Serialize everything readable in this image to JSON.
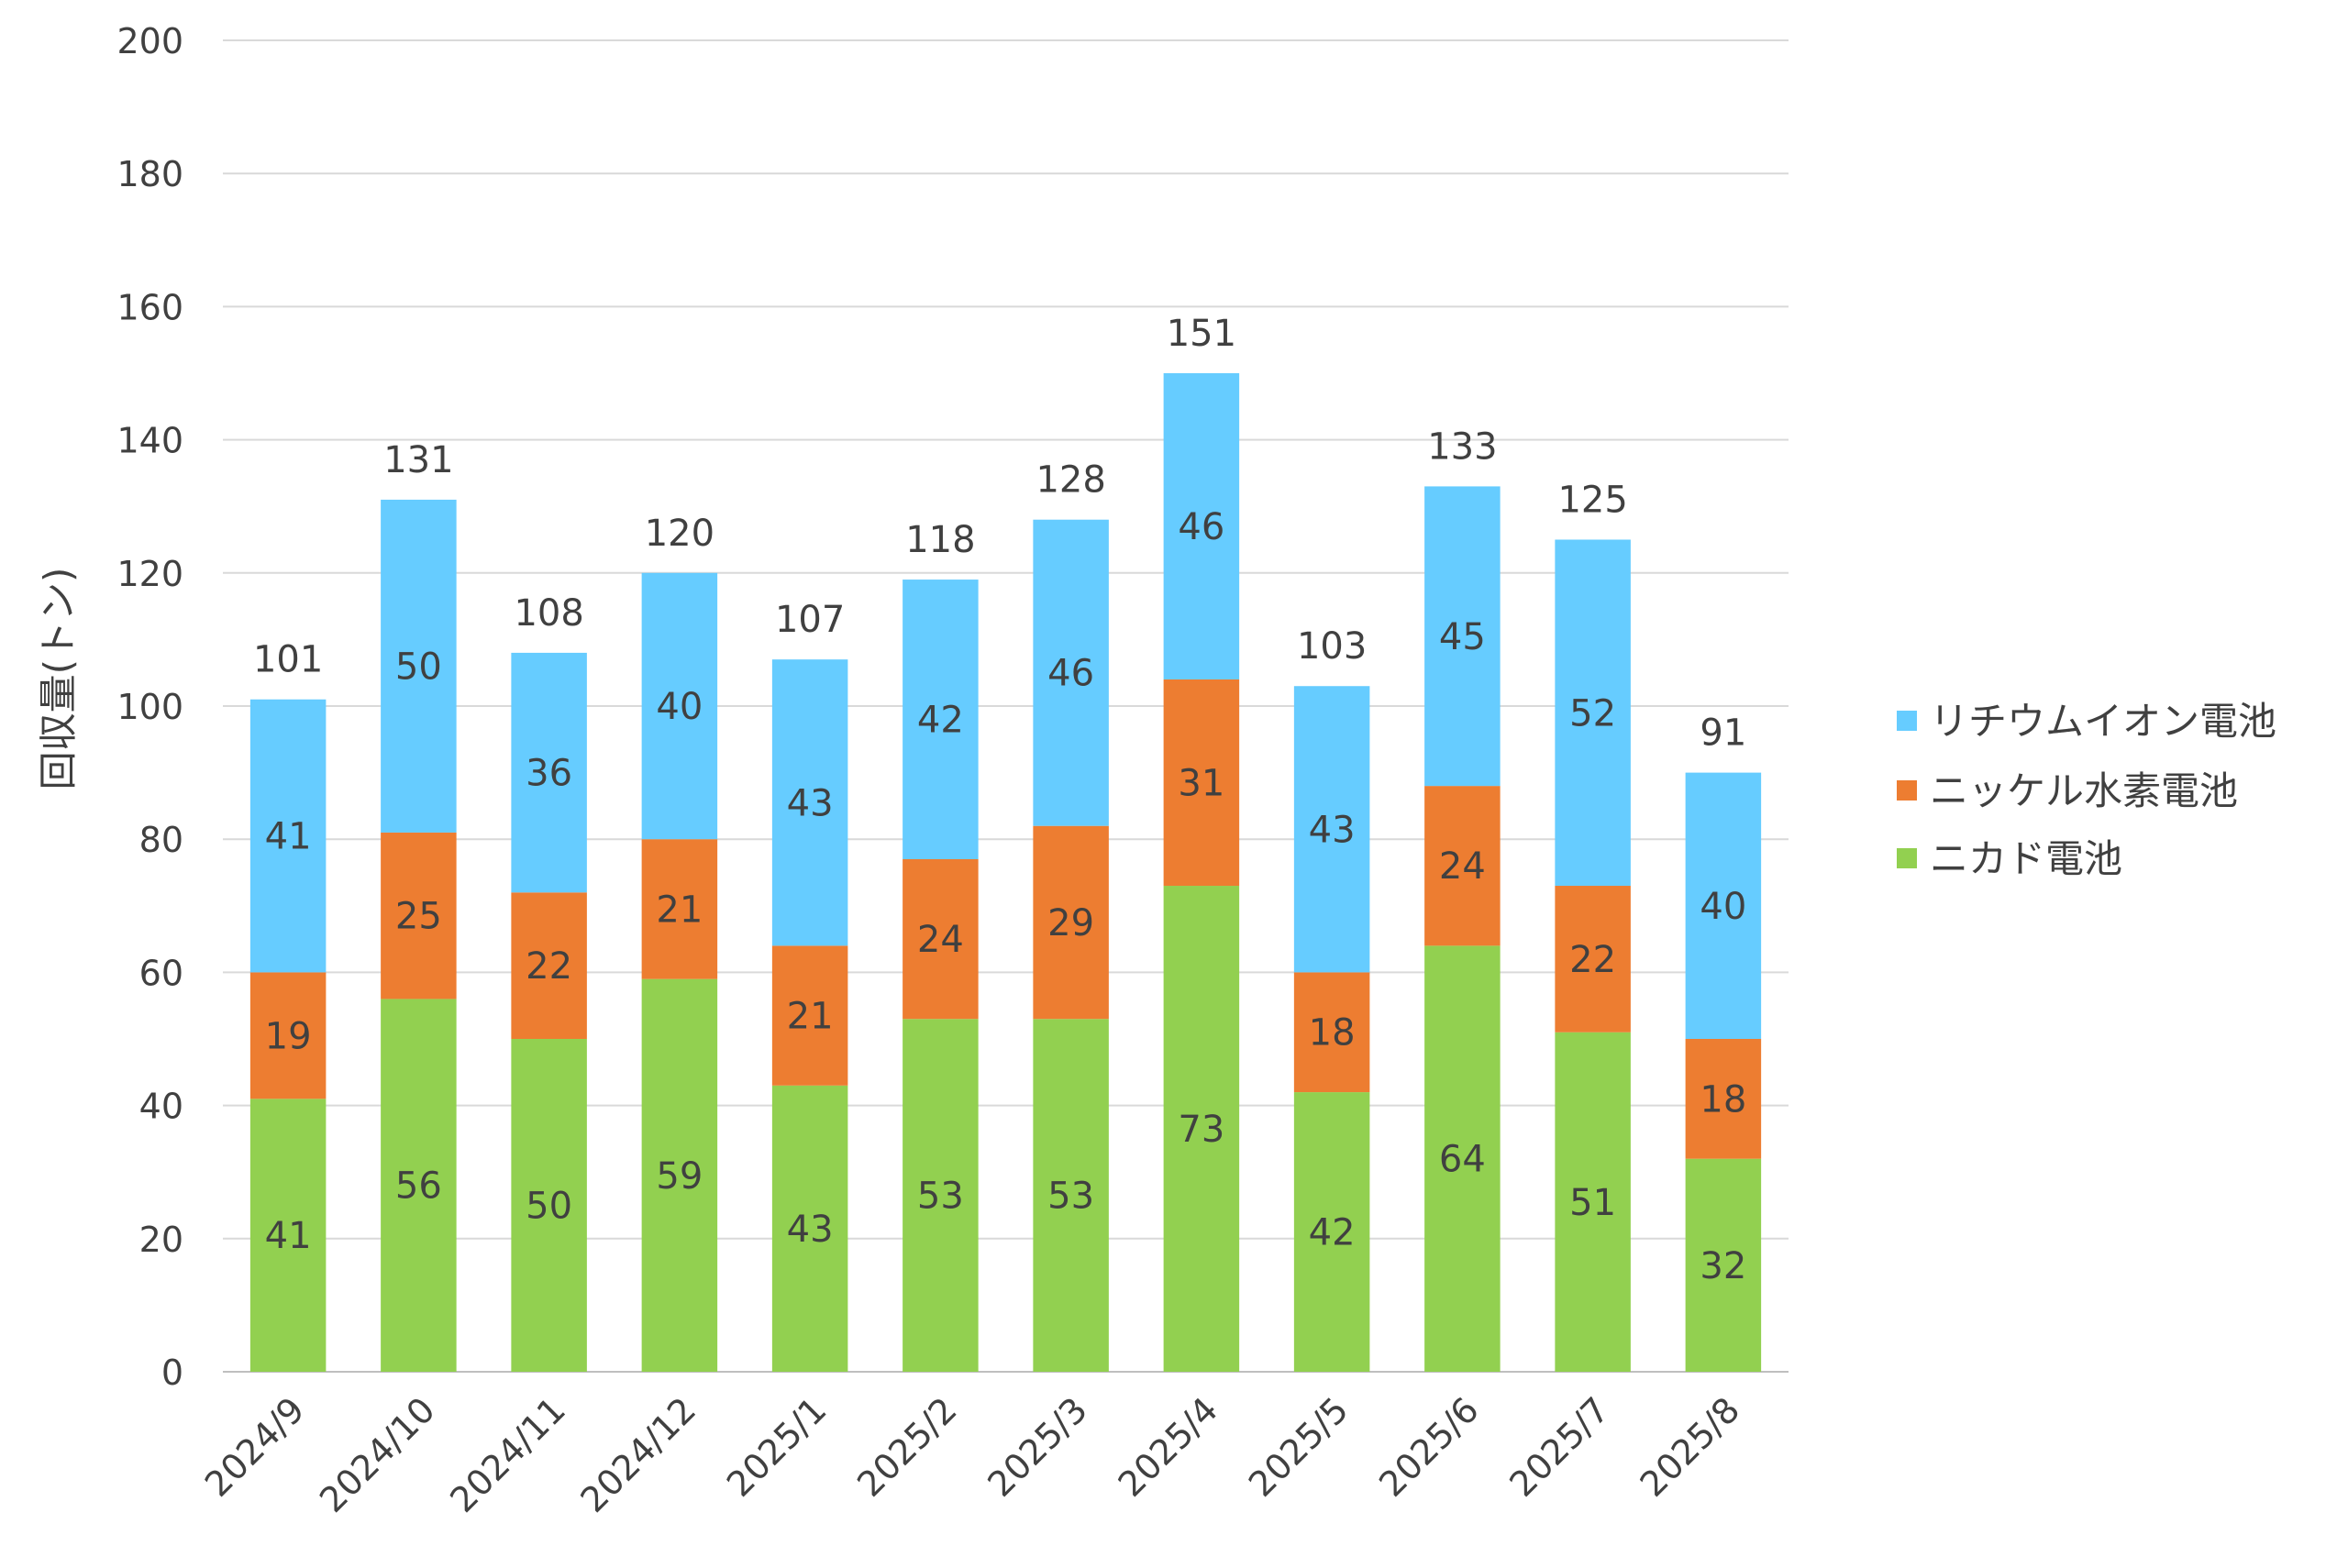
{
  "chart_data": {
    "type": "bar",
    "stacked": true,
    "categories": [
      "2024/9",
      "2024/10",
      "2024/11",
      "2024/12",
      "2025/1",
      "2025/2",
      "2025/3",
      "2025/4",
      "2025/5",
      "2025/6",
      "2025/7",
      "2025/8"
    ],
    "series": [
      {
        "name": "ニカド電池",
        "color": "#92d050",
        "values": [
          41,
          56,
          50,
          59,
          43,
          53,
          53,
          73,
          42,
          64,
          51,
          32
        ]
      },
      {
        "name": "ニッケル水素電池",
        "color": "#ed7d31",
        "values": [
          19,
          25,
          22,
          21,
          21,
          24,
          29,
          31,
          18,
          24,
          22,
          18
        ]
      },
      {
        "name": "リチウムイオン電池",
        "color": "#66ccff",
        "values": [
          41,
          50,
          36,
          40,
          43,
          42,
          46,
          46,
          43,
          45,
          52,
          40
        ]
      }
    ],
    "totals": [
      101,
      131,
      108,
      120,
      107,
      118,
      128,
      151,
      103,
      133,
      125,
      91
    ],
    "ylabel": "回収量(トン)",
    "ylim": [
      0,
      200
    ],
    "yticks": [
      0,
      20,
      40,
      60,
      80,
      100,
      120,
      140,
      160,
      180,
      200
    ],
    "grid": true,
    "legend_position": "right",
    "legend_order": [
      "リチウムイオン電池",
      "ニッケル水素電池",
      "ニカド電池"
    ]
  }
}
